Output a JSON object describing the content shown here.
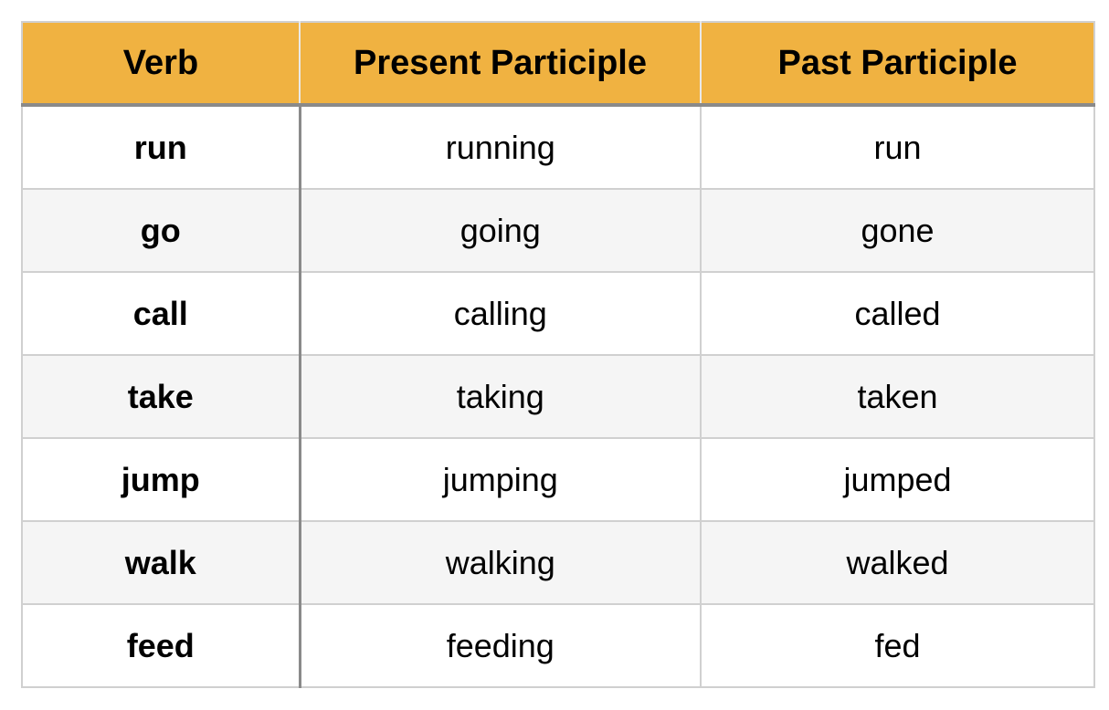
{
  "table": {
    "headers": [
      "Verb",
      "Present Participle",
      "Past Participle"
    ],
    "rows": [
      {
        "verb": "run",
        "present": "running",
        "past": "run"
      },
      {
        "verb": "go",
        "present": "going",
        "past": "gone"
      },
      {
        "verb": "call",
        "present": "calling",
        "past": "called"
      },
      {
        "verb": "take",
        "present": "taking",
        "past": "taken"
      },
      {
        "verb": "jump",
        "present": "jumping",
        "past": "jumped"
      },
      {
        "verb": "walk",
        "present": "walking",
        "past": "walked"
      },
      {
        "verb": "feed",
        "present": "feeding",
        "past": "fed"
      }
    ]
  },
  "colors": {
    "header_background": "#f0b241",
    "alternate_row_background": "#f5f5f5",
    "grid_line": "#d0d0d0",
    "divider_line": "#8a8a8a"
  }
}
